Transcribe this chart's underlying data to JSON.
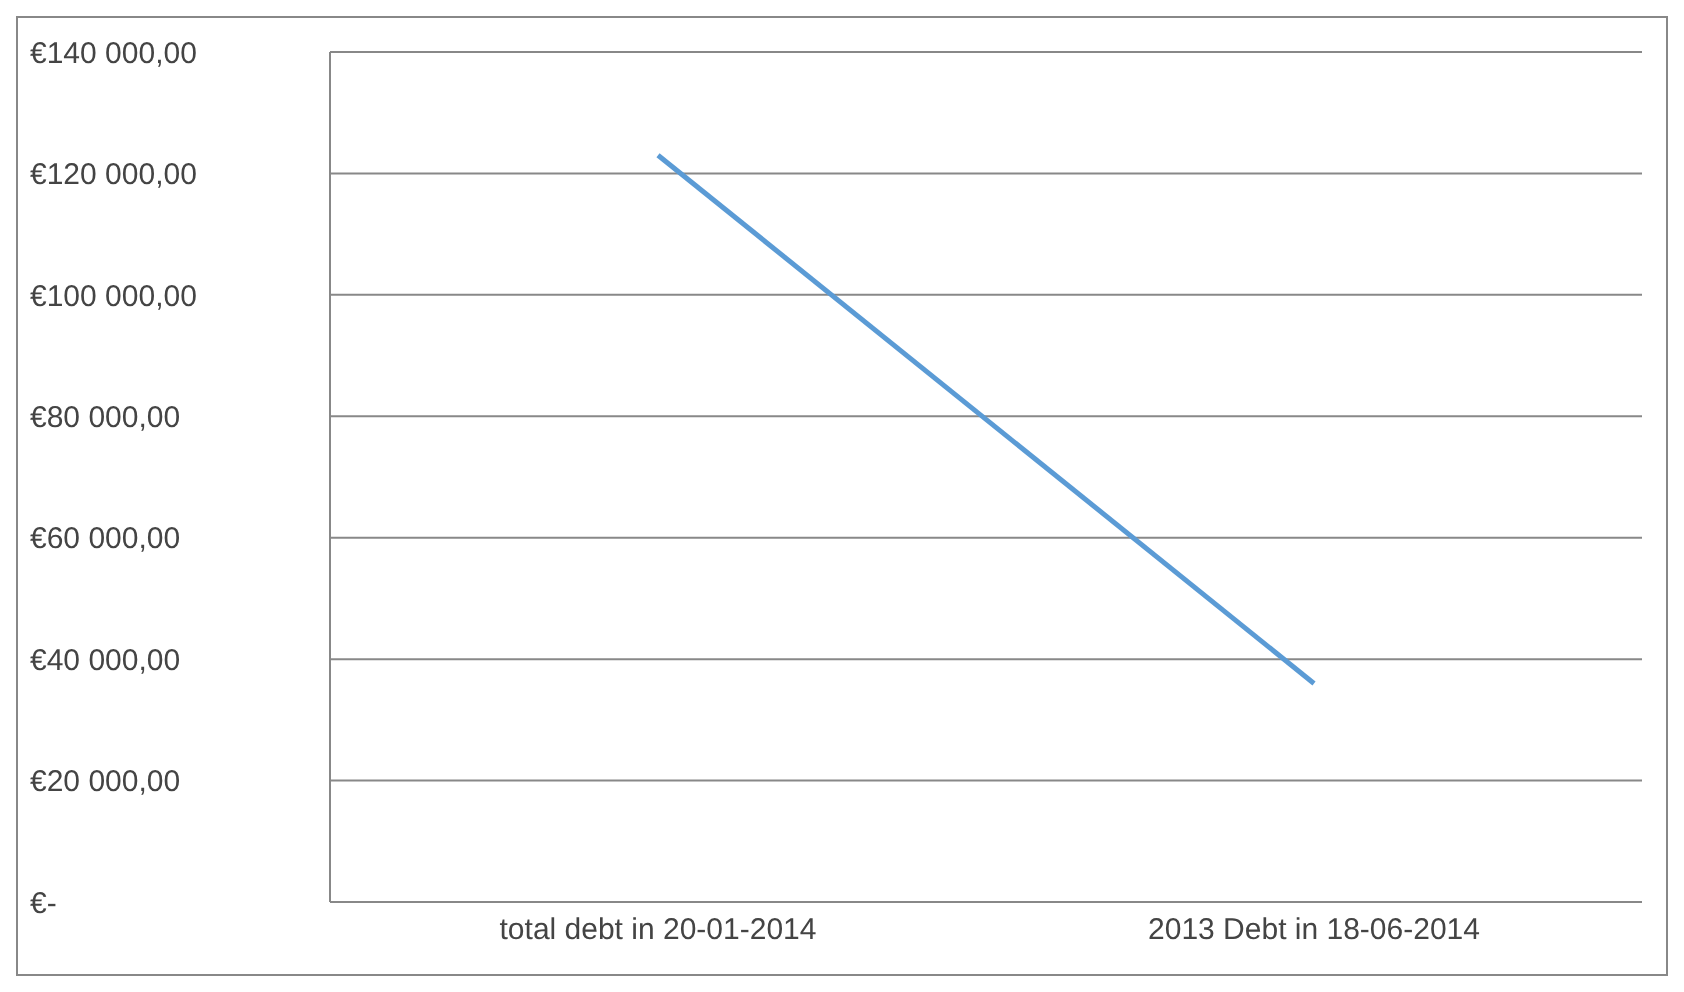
{
  "chart_data": {
    "type": "line",
    "categories": [
      "total debt in 20-01-2014",
      "2013 Debt in 18-06-2014"
    ],
    "series": [
      {
        "color": "#5b9bd5",
        "values": [
          123000,
          36000
        ]
      }
    ],
    "ylim": [
      0,
      140000
    ],
    "yticks": [
      {
        "value": 0,
        "label": "€-"
      },
      {
        "value": 20000,
        "label": "€20 000,00"
      },
      {
        "value": 40000,
        "label": "€40 000,00"
      },
      {
        "value": 60000,
        "label": "€60 000,00"
      },
      {
        "value": 80000,
        "label": "€80 000,00"
      },
      {
        "value": 100000,
        "label": "€100 000,00"
      },
      {
        "value": 120000,
        "label": "€120 000,00"
      },
      {
        "value": 140000,
        "label": "€140 000,00"
      }
    ],
    "grid": "y",
    "legend": false,
    "marker": "none"
  }
}
